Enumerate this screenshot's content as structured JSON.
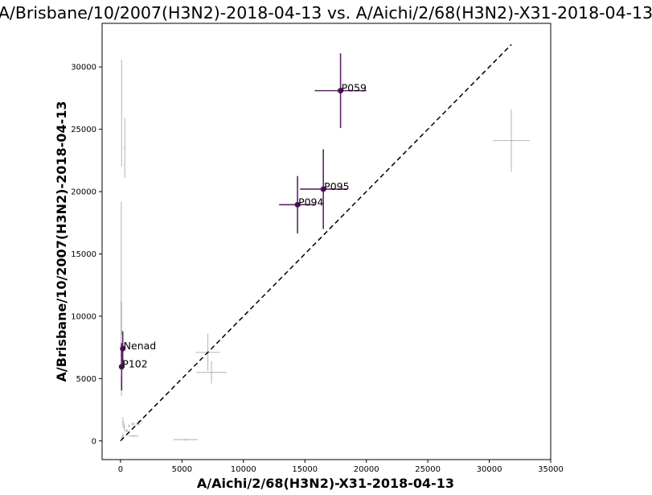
{
  "chart_data": {
    "type": "scatter",
    "title": "A/Brisbane/10/2007(H3N2)-2018-04-13 vs. A/Aichi/2/68(H3N2)-X31-2018-04-13",
    "xlabel": "A/Aichi/2/68(H3N2)-X31-2018-04-13",
    "ylabel": "A/Brisbane/10/2007(H3N2)-2018-04-13",
    "xlim": [
      -1500,
      35000
    ],
    "ylim": [
      -1500,
      33500
    ],
    "xticks": [
      0,
      5000,
      10000,
      15000,
      20000,
      25000,
      30000,
      35000
    ],
    "yticks": [
      0,
      5000,
      10000,
      15000,
      20000,
      25000,
      30000
    ],
    "grid": false,
    "diagonal": {
      "from": [
        0,
        0
      ],
      "to": [
        31800,
        31800
      ],
      "style": "dashed"
    },
    "colors": {
      "highlight": "#4b0f55",
      "background": "#aaaaaa",
      "diagonal": "#000000"
    },
    "highlighted": [
      {
        "label": "P059",
        "x": 17900,
        "y": 28100,
        "xerr": 2100,
        "yerr": 3000
      },
      {
        "label": "P095",
        "x": 16500,
        "y": 20200,
        "xerr": 1900,
        "yerr": 3200
      },
      {
        "label": "P094",
        "x": 14400,
        "y": 18950,
        "xerr": 1500,
        "yerr": 2300
      },
      {
        "label": "Nenad",
        "x": 180,
        "y": 7400,
        "xerr": 150,
        "yerr": 1400
      },
      {
        "label": "P102",
        "x": 90,
        "y": 5950,
        "xerr": 120,
        "yerr": 1900
      }
    ],
    "background_points": [
      {
        "x": 31800,
        "y": 24100,
        "xerr": 1500,
        "yerr": 2500
      },
      {
        "x": 7100,
        "y": 7100,
        "xerr": 1000,
        "yerr": 1500
      },
      {
        "x": 7400,
        "y": 5500,
        "xerr": 1200,
        "yerr": 900
      },
      {
        "x": 5300,
        "y": 100,
        "xerr": 1000,
        "yerr": 100
      },
      {
        "x": 90,
        "y": 26300,
        "xerr": 40,
        "yerr": 4300
      },
      {
        "x": 350,
        "y": 23500,
        "xerr": 60,
        "yerr": 2400
      },
      {
        "x": 60,
        "y": 15000,
        "xerr": 40,
        "yerr": 4200
      },
      {
        "x": 90,
        "y": 9800,
        "xerr": 40,
        "yerr": 1300
      },
      {
        "x": 40,
        "y": 8700,
        "xerr": 30,
        "yerr": 2500
      },
      {
        "x": 70,
        "y": 4400,
        "xerr": 40,
        "yerr": 800
      },
      {
        "x": 200,
        "y": 1500,
        "xerr": 100,
        "yerr": 400
      },
      {
        "x": 300,
        "y": 1100,
        "xerr": 80,
        "yerr": 300
      },
      {
        "x": 1000,
        "y": 1350,
        "xerr": 150,
        "yerr": 150
      },
      {
        "x": 1400,
        "y": 1350,
        "xerr": 200,
        "yerr": 120
      },
      {
        "x": 1600,
        "y": 1600,
        "xerr": 200,
        "yerr": 120
      },
      {
        "x": 1050,
        "y": 400,
        "xerr": 400,
        "yerr": 80
      },
      {
        "x": 500,
        "y": 800,
        "xerr": 150,
        "yerr": 150
      },
      {
        "x": 700,
        "y": 1200,
        "xerr": 100,
        "yerr": 100
      },
      {
        "x": 200,
        "y": 400,
        "xerr": 100,
        "yerr": 200
      },
      {
        "x": 100,
        "y": 200,
        "xerr": 80,
        "yerr": 150
      }
    ]
  }
}
